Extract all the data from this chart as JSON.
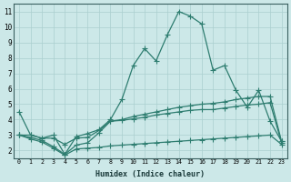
{
  "xlabel": "Humidex (Indice chaleur)",
  "bg_color": "#cce8e8",
  "line_color": "#2e7d70",
  "grid_color": "#aacfcf",
  "xlim": [
    -0.5,
    23.5
  ],
  "ylim": [
    1.5,
    11.5
  ],
  "xticks": [
    0,
    1,
    2,
    3,
    4,
    5,
    6,
    7,
    8,
    9,
    10,
    11,
    12,
    13,
    14,
    15,
    16,
    17,
    18,
    19,
    20,
    21,
    22,
    23
  ],
  "yticks": [
    2,
    3,
    4,
    5,
    6,
    7,
    8,
    9,
    10,
    11
  ],
  "line1_x": [
    0,
    1,
    2,
    3,
    4,
    5,
    6,
    7,
    8,
    9,
    10,
    11,
    12,
    13,
    14,
    15,
    16,
    17,
    18,
    19,
    20,
    21,
    22,
    23
  ],
  "line1_y": [
    4.5,
    3.0,
    2.8,
    3.0,
    1.75,
    2.9,
    3.1,
    3.35,
    4.0,
    5.3,
    7.5,
    8.6,
    7.8,
    9.5,
    11.0,
    10.7,
    10.2,
    7.2,
    7.5,
    5.9,
    4.8,
    5.9,
    3.9,
    2.6
  ],
  "line2_x": [
    0,
    1,
    2,
    3,
    4,
    5,
    6,
    7,
    8,
    9,
    10,
    11,
    12,
    13,
    14,
    15,
    16,
    17,
    18,
    19,
    20,
    21,
    22,
    23
  ],
  "line2_y": [
    3.0,
    3.0,
    2.8,
    2.8,
    2.4,
    2.8,
    2.85,
    3.3,
    3.9,
    4.0,
    4.2,
    4.35,
    4.5,
    4.65,
    4.8,
    4.9,
    5.0,
    5.05,
    5.15,
    5.3,
    5.4,
    5.5,
    5.5,
    2.6
  ],
  "line3_x": [
    0,
    1,
    2,
    3,
    4,
    5,
    6,
    7,
    8,
    9,
    10,
    11,
    12,
    13,
    14,
    15,
    16,
    17,
    18,
    19,
    20,
    21,
    22,
    23
  ],
  "line3_y": [
    3.0,
    2.85,
    2.65,
    2.25,
    1.75,
    2.35,
    2.5,
    3.15,
    3.9,
    3.95,
    4.05,
    4.15,
    4.3,
    4.4,
    4.5,
    4.6,
    4.65,
    4.65,
    4.75,
    4.85,
    4.95,
    5.0,
    5.1,
    2.5
  ],
  "line4_x": [
    0,
    1,
    2,
    3,
    4,
    5,
    6,
    7,
    8,
    9,
    10,
    11,
    12,
    13,
    14,
    15,
    16,
    17,
    18,
    19,
    20,
    21,
    22,
    23
  ],
  "line4_y": [
    3.0,
    2.75,
    2.55,
    2.15,
    1.7,
    2.1,
    2.15,
    2.2,
    2.3,
    2.35,
    2.4,
    2.45,
    2.5,
    2.55,
    2.6,
    2.65,
    2.7,
    2.75,
    2.8,
    2.85,
    2.9,
    2.95,
    3.0,
    2.4
  ]
}
